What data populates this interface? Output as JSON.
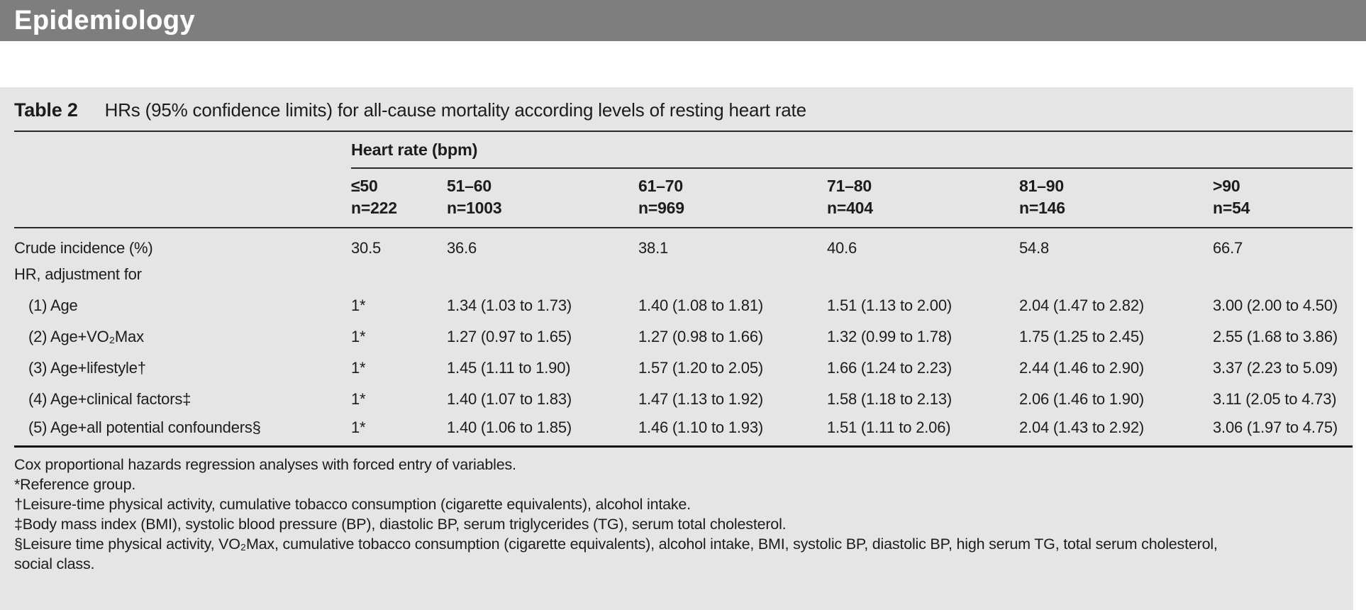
{
  "banner": {
    "title": "Epidemiology",
    "bg_color": "#7e7e7e",
    "text_color": "#ffffff"
  },
  "panel": {
    "bg_color": "#e5e5e5"
  },
  "table": {
    "label": "Table 2",
    "caption": "HRs (95% confidence limits) for all-cause mortality according levels of resting heart rate",
    "group_header": "Heart rate (bpm)",
    "columns": [
      {
        "range": "≤50",
        "n": "n=222"
      },
      {
        "range": "51–60",
        "n": "n=1003"
      },
      {
        "range": "61–70",
        "n": "n=969"
      },
      {
        "range": "71–80",
        "n": "n=404"
      },
      {
        "range": "81–90",
        "n": "n=146"
      },
      {
        "range": ">90",
        "n": "n=54"
      }
    ],
    "rows": [
      {
        "label": "Crude incidence (%)",
        "indent": false,
        "values": [
          "30.5",
          "36.6",
          "38.1",
          "40.6",
          "54.8",
          "66.7"
        ]
      },
      {
        "label": "HR, adjustment for",
        "indent": false,
        "values": [
          "",
          "",
          "",
          "",
          "",
          ""
        ]
      },
      {
        "label": "(1) Age",
        "indent": true,
        "values": [
          "1*",
          "1.34 (1.03 to 1.73)",
          "1.40 (1.08 to 1.81)",
          "1.51 (1.13 to 2.00)",
          "2.04 (1.47 to 2.82)",
          "3.00 (2.00 to 4.50)"
        ]
      },
      {
        "label": "(2) Age+VO₂Max",
        "indent": true,
        "values": [
          "1*",
          "1.27 (0.97 to 1.65)",
          "1.27 (0.98 to 1.66)",
          "1.32 (0.99 to 1.78)",
          "1.75 (1.25 to 2.45)",
          "2.55 (1.68 to 3.86)"
        ]
      },
      {
        "label": "(3) Age+lifestyle†",
        "indent": true,
        "values": [
          "1*",
          "1.45 (1.11 to 1.90)",
          "1.57 (1.20 to 2.05)",
          "1.66 (1.24 to 2.23)",
          "2.44 (1.46 to 2.90)",
          "3.37 (2.23 to 5.09)"
        ]
      },
      {
        "label": "(4) Age+clinical factors‡",
        "indent": true,
        "values": [
          "1*",
          "1.40 (1.07 to 1.83)",
          "1.47 (1.13 to 1.92)",
          "1.58 (1.18 to 2.13)",
          "2.06 (1.46 to 1.90)",
          "3.11 (2.05 to 4.73)"
        ]
      },
      {
        "label": "(5) Age+all potential confounders§",
        "indent": true,
        "values": [
          "1*",
          "1.40 (1.06 to 1.85)",
          "1.46 (1.10 to 1.93)",
          "1.51 (1.11 to 2.06)",
          "2.04 (1.43 to 2.92)",
          "3.06 (1.97 to 4.75)"
        ]
      }
    ],
    "footnotes": [
      "Cox proportional hazards regression analyses with forced entry of variables.",
      "*Reference group.",
      "†Leisure-time physical activity, cumulative tobacco consumption (cigarette equivalents), alcohol intake.",
      "‡Body mass index (BMI), systolic blood pressure (BP), diastolic BP, serum triglycerides (TG), serum total cholesterol.",
      "§Leisure time physical activity, VO₂Max, cumulative tobacco consumption (cigarette equivalents), alcohol intake, BMI, systolic BP, diastolic BP, high serum TG, total serum cholesterol,\nsocial class."
    ]
  }
}
